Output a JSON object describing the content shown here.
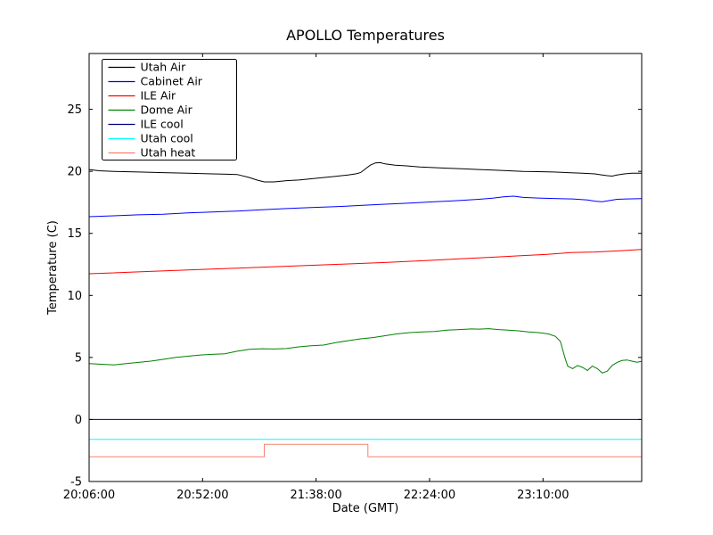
{
  "chart_data": {
    "type": "line",
    "title": "APOLLO Temperatures",
    "xlabel": "Date (GMT)",
    "ylabel": "Temperature (C)",
    "grid": false,
    "legend_position": "upper left",
    "x_ticks": [
      "20:06:00",
      "20:52:00",
      "21:38:00",
      "22:24:00",
      "23:10:00"
    ],
    "x_tick_minutes": [
      0,
      46,
      92,
      138,
      184
    ],
    "x_range_minutes": [
      0,
      224
    ],
    "ylim": [
      -5,
      29.5
    ],
    "y_ticks": [
      -5,
      0,
      5,
      10,
      15,
      20,
      25
    ],
    "axis_color": "#000000",
    "background_color": "#ffffff",
    "series": [
      {
        "name": "Utah Air",
        "color": "#000000",
        "points": [
          [
            0,
            20.15
          ],
          [
            4,
            20.05
          ],
          [
            10,
            20.0
          ],
          [
            20,
            19.95
          ],
          [
            30,
            19.9
          ],
          [
            40,
            19.85
          ],
          [
            50,
            19.8
          ],
          [
            60,
            19.75
          ],
          [
            65,
            19.5
          ],
          [
            68,
            19.3
          ],
          [
            71,
            19.15
          ],
          [
            75,
            19.15
          ],
          [
            80,
            19.25
          ],
          [
            85,
            19.3
          ],
          [
            90,
            19.4
          ],
          [
            95,
            19.5
          ],
          [
            100,
            19.6
          ],
          [
            105,
            19.7
          ],
          [
            108,
            19.8
          ],
          [
            110,
            19.9
          ],
          [
            112,
            20.2
          ],
          [
            114,
            20.5
          ],
          [
            116,
            20.68
          ],
          [
            118,
            20.7
          ],
          [
            120,
            20.6
          ],
          [
            124,
            20.5
          ],
          [
            128,
            20.45
          ],
          [
            134,
            20.35
          ],
          [
            140,
            20.3
          ],
          [
            146,
            20.25
          ],
          [
            152,
            20.2
          ],
          [
            158,
            20.15
          ],
          [
            164,
            20.1
          ],
          [
            170,
            20.05
          ],
          [
            176,
            20.0
          ],
          [
            182,
            19.98
          ],
          [
            188,
            19.95
          ],
          [
            194,
            19.9
          ],
          [
            200,
            19.85
          ],
          [
            205,
            19.8
          ],
          [
            208,
            19.7
          ],
          [
            210,
            19.65
          ],
          [
            212,
            19.62
          ],
          [
            214,
            19.7
          ],
          [
            217,
            19.8
          ],
          [
            220,
            19.85
          ],
          [
            224,
            19.85
          ]
        ]
      },
      {
        "name": "Cabinet Air",
        "color": "#0000ff",
        "points": [
          [
            0,
            16.35
          ],
          [
            10,
            16.42
          ],
          [
            20,
            16.5
          ],
          [
            30,
            16.55
          ],
          [
            40,
            16.65
          ],
          [
            50,
            16.72
          ],
          [
            60,
            16.8
          ],
          [
            70,
            16.9
          ],
          [
            80,
            17.0
          ],
          [
            90,
            17.08
          ],
          [
            100,
            17.15
          ],
          [
            110,
            17.25
          ],
          [
            120,
            17.35
          ],
          [
            130,
            17.45
          ],
          [
            140,
            17.55
          ],
          [
            150,
            17.65
          ],
          [
            158,
            17.75
          ],
          [
            164,
            17.85
          ],
          [
            168,
            17.95
          ],
          [
            172,
            18.0
          ],
          [
            176,
            17.9
          ],
          [
            182,
            17.85
          ],
          [
            190,
            17.8
          ],
          [
            196,
            17.78
          ],
          [
            202,
            17.7
          ],
          [
            205,
            17.6
          ],
          [
            208,
            17.55
          ],
          [
            211,
            17.65
          ],
          [
            214,
            17.75
          ],
          [
            218,
            17.78
          ],
          [
            224,
            17.8
          ]
        ]
      },
      {
        "name": "ILE Air",
        "color": "#ff0000",
        "points": [
          [
            0,
            11.75
          ],
          [
            20,
            11.9
          ],
          [
            40,
            12.05
          ],
          [
            60,
            12.2
          ],
          [
            80,
            12.35
          ],
          [
            100,
            12.5
          ],
          [
            120,
            12.65
          ],
          [
            140,
            12.85
          ],
          [
            155,
            13.0
          ],
          [
            165,
            13.1
          ],
          [
            175,
            13.2
          ],
          [
            185,
            13.3
          ],
          [
            195,
            13.45
          ],
          [
            205,
            13.5
          ],
          [
            215,
            13.6
          ],
          [
            224,
            13.7
          ]
        ]
      },
      {
        "name": "Dome Air",
        "color": "#008000",
        "points": [
          [
            0,
            4.5
          ],
          [
            5,
            4.45
          ],
          [
            10,
            4.4
          ],
          [
            15,
            4.5
          ],
          [
            20,
            4.6
          ],
          [
            25,
            4.7
          ],
          [
            30,
            4.85
          ],
          [
            35,
            5.0
          ],
          [
            40,
            5.1
          ],
          [
            45,
            5.2
          ],
          [
            50,
            5.25
          ],
          [
            55,
            5.3
          ],
          [
            60,
            5.5
          ],
          [
            65,
            5.65
          ],
          [
            70,
            5.7
          ],
          [
            75,
            5.68
          ],
          [
            80,
            5.72
          ],
          [
            85,
            5.85
          ],
          [
            90,
            5.95
          ],
          [
            95,
            6.0
          ],
          [
            100,
            6.2
          ],
          [
            105,
            6.35
          ],
          [
            110,
            6.5
          ],
          [
            115,
            6.6
          ],
          [
            120,
            6.75
          ],
          [
            125,
            6.9
          ],
          [
            130,
            7.0
          ],
          [
            135,
            7.05
          ],
          [
            140,
            7.1
          ],
          [
            145,
            7.2
          ],
          [
            150,
            7.25
          ],
          [
            155,
            7.3
          ],
          [
            158,
            7.28
          ],
          [
            162,
            7.32
          ],
          [
            166,
            7.25
          ],
          [
            170,
            7.2
          ],
          [
            174,
            7.15
          ],
          [
            178,
            7.05
          ],
          [
            182,
            7.0
          ],
          [
            186,
            6.9
          ],
          [
            189,
            6.7
          ],
          [
            191,
            6.3
          ],
          [
            193,
            4.9
          ],
          [
            194,
            4.3
          ],
          [
            196,
            4.1
          ],
          [
            198,
            4.35
          ],
          [
            200,
            4.2
          ],
          [
            202,
            3.95
          ],
          [
            204,
            4.3
          ],
          [
            206,
            4.1
          ],
          [
            208,
            3.75
          ],
          [
            210,
            3.9
          ],
          [
            212,
            4.35
          ],
          [
            214,
            4.6
          ],
          [
            216,
            4.75
          ],
          [
            218,
            4.8
          ],
          [
            220,
            4.7
          ],
          [
            222,
            4.62
          ],
          [
            224,
            4.68
          ]
        ]
      },
      {
        "name": "ILE cool",
        "color": "#000080",
        "points": [
          [
            0,
            0
          ],
          [
            224,
            0
          ]
        ]
      },
      {
        "name": "Utah cool",
        "color": "#00ffff",
        "points": [
          [
            0,
            -1.6
          ],
          [
            224,
            -1.6
          ]
        ]
      },
      {
        "name": "Utah heat",
        "color": "#fa8072",
        "points": [
          [
            0,
            -3
          ],
          [
            71,
            -3
          ],
          [
            71,
            -2.0
          ],
          [
            113,
            -2.0
          ],
          [
            113,
            -3
          ],
          [
            224,
            -3
          ]
        ]
      }
    ]
  }
}
